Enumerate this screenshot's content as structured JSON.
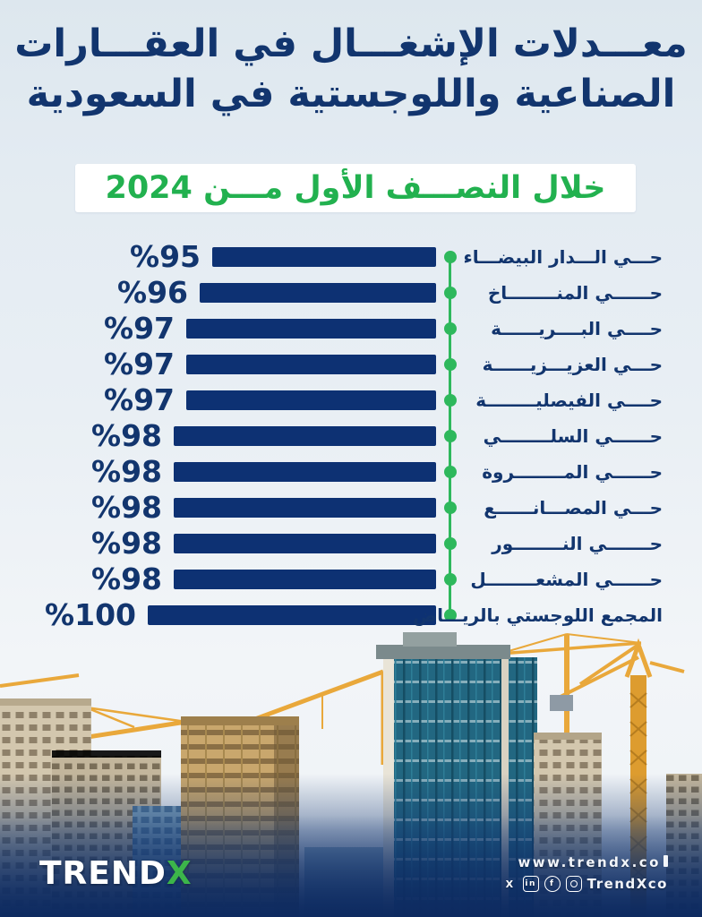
{
  "title": {
    "line1": "معـــدلات الإشغـــال في العقـــارات",
    "line2": "الصناعية واللوجستية في السعودية"
  },
  "subtitle": "خلال النصـــف الأول مـــن 2024",
  "chart_data": {
    "type": "bar",
    "orientation": "horizontal",
    "title": "معدلات الإشغال في العقارات الصناعية واللوجستية في السعودية",
    "subtitle": "خلال النصف الأول من 2024",
    "unit": "%",
    "xlim": [
      0,
      100
    ],
    "grid": false,
    "legend": "none",
    "bar_color": "#0d3173",
    "axis_accent_color": "#2eb85c",
    "categories": [
      "حـــي الـــدار البيضـــاء",
      "حــــــي المنــــــــاخ",
      "حــــي البــــريــــــة",
      "حـــي العزيـــزيــــــة",
      "حــــي الفيصليــــــــة",
      "حــــــي السلــــــــي",
      "حــــــي المــــــــروة",
      "حـــي المصـــانــــــع",
      "حـــــــي النــــــــور",
      "حــــــي المشعــــــــل",
      "المجمع اللوجستي بالريـــاض"
    ],
    "values": [
      95,
      96,
      97,
      97,
      97,
      98,
      98,
      98,
      98,
      98,
      100
    ],
    "display_labels": [
      "%95",
      "%96",
      "%97",
      "%97",
      "%97",
      "%98",
      "%98",
      "%98",
      "%98",
      "%98",
      "%100"
    ]
  },
  "footer": {
    "logo_main": "TREND",
    "logo_x": "X",
    "website": "www.trendx.co",
    "handle": "TrendXco",
    "social_icons": [
      {
        "name": "x",
        "glyph": "X"
      },
      {
        "name": "linkedin",
        "glyph": "in"
      },
      {
        "name": "facebook",
        "glyph": "f"
      },
      {
        "name": "instagram",
        "glyph": ""
      }
    ]
  },
  "colors": {
    "navy": "#12356e",
    "bar_navy": "#0d3173",
    "green": "#22b14f",
    "dot_green": "#2eb85c",
    "background_top": "#dde7ee",
    "footer_navy": "#0d2a60",
    "crane_yellow": "#e9a83b"
  }
}
